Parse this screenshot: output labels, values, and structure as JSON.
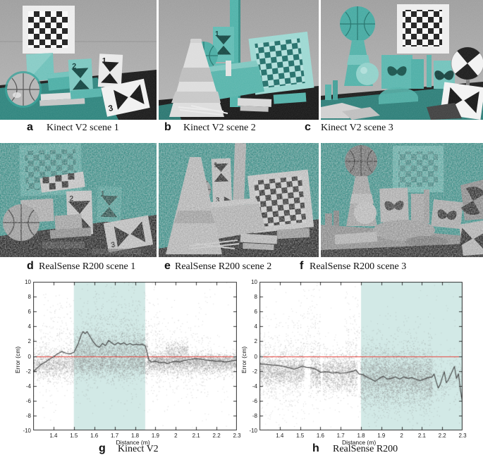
{
  "captions": {
    "a": {
      "letter": "a",
      "text": "Kinect V2 scene 1"
    },
    "b": {
      "letter": "b",
      "text": "Kinect V2 scene 2"
    },
    "c": {
      "letter": "c",
      "text": "Kinect V2 scene 3"
    },
    "d": {
      "letter": "d",
      "text": "RealSense R200 scene 1"
    },
    "e": {
      "letter": "e",
      "text": "RealSense R200 scene 2"
    },
    "f": {
      "letter": "f",
      "text": "RealSense R200 scene 3"
    },
    "g": {
      "letter": "g",
      "text": "Kinect V2"
    },
    "h": {
      "letter": "h",
      "text": "RealSense R200"
    }
  },
  "scene_markers": {
    "a": {
      "card1": "1",
      "card2": "2",
      "card3": "3"
    },
    "b": {
      "card1": "1",
      "card3": "3"
    },
    "c": {
      "card1": "1"
    },
    "d": {
      "card1": "1",
      "card2": "2",
      "card3": "3"
    },
    "e": {
      "card1": "1",
      "card3": "3"
    }
  },
  "colors": {
    "teal_overlay": "#45b0a7",
    "teal_wall": "#2d978e",
    "band_fill": "#d2e9e6",
    "scatter_gray": "#8d8d8d",
    "mean_line": "#4a4a4a",
    "zero_line": "#e8433c",
    "caption_text": "#111111"
  },
  "chart_data": [
    {
      "type": "scatter",
      "panel": "g",
      "title": "Kinect V2",
      "xlabel": "Distance (m)",
      "ylabel": "Error (cm)",
      "xlim": [
        1.3,
        2.3
      ],
      "ylim": [
        -10,
        10
      ],
      "xticks": [
        1.4,
        1.5,
        1.6,
        1.7,
        1.8,
        1.9,
        2.0,
        2.1,
        2.2,
        2.3
      ],
      "xtick_labels": [
        "1.4",
        "1.5",
        "1.6",
        "1.7",
        "1.8",
        "1.9",
        "2",
        "2.1",
        "2.2",
        "2.3"
      ],
      "yticks": [
        -10,
        -8,
        -6,
        -4,
        -2,
        0,
        2,
        4,
        6,
        8,
        10
      ],
      "ytick_labels": [
        "-10",
        "-8",
        "-6",
        "-4",
        "-2",
        "0",
        "2",
        "4",
        "6",
        "8",
        "10"
      ],
      "highlight_band": {
        "x0": 1.5,
        "x1": 1.85,
        "color": "#d2e9e6"
      },
      "zero_line": {
        "y": 0,
        "color": "#e8433c"
      },
      "mean_line": {
        "color": "#4a4a4a",
        "points": [
          [
            1.3,
            -2.1
          ],
          [
            1.32,
            -1.6
          ],
          [
            1.34,
            -1.1
          ],
          [
            1.36,
            -0.8
          ],
          [
            1.38,
            -0.4
          ],
          [
            1.4,
            -0.1
          ],
          [
            1.42,
            0.3
          ],
          [
            1.44,
            0.6
          ],
          [
            1.46,
            0.4
          ],
          [
            1.48,
            0.3
          ],
          [
            1.5,
            0.5
          ],
          [
            1.52,
            1.6
          ],
          [
            1.535,
            2.8
          ],
          [
            1.545,
            3.3
          ],
          [
            1.555,
            3.0
          ],
          [
            1.565,
            3.3
          ],
          [
            1.58,
            2.6
          ],
          [
            1.595,
            1.9
          ],
          [
            1.61,
            1.4
          ],
          [
            1.625,
            1.2
          ],
          [
            1.64,
            1.7
          ],
          [
            1.655,
            1.4
          ],
          [
            1.67,
            2.1
          ],
          [
            1.685,
            1.8
          ],
          [
            1.7,
            1.5
          ],
          [
            1.715,
            1.8
          ],
          [
            1.73,
            1.6
          ],
          [
            1.745,
            1.8
          ],
          [
            1.76,
            1.5
          ],
          [
            1.775,
            1.7
          ],
          [
            1.79,
            1.5
          ],
          [
            1.805,
            1.6
          ],
          [
            1.82,
            1.5
          ],
          [
            1.835,
            1.6
          ],
          [
            1.85,
            1.4
          ],
          [
            1.858,
            0.6
          ],
          [
            1.868,
            -0.5
          ],
          [
            1.88,
            -0.8
          ],
          [
            1.9,
            -0.7
          ],
          [
            1.92,
            -0.9
          ],
          [
            1.94,
            -0.8
          ],
          [
            1.96,
            -1.0
          ],
          [
            1.98,
            -0.8
          ],
          [
            2.0,
            -0.7
          ],
          [
            2.02,
            -0.8
          ],
          [
            2.04,
            -0.6
          ],
          [
            2.06,
            -0.5
          ],
          [
            2.08,
            -0.4
          ],
          [
            2.1,
            -0.35
          ],
          [
            2.12,
            -0.4
          ],
          [
            2.14,
            -0.5
          ],
          [
            2.16,
            -0.55
          ],
          [
            2.18,
            -0.6
          ],
          [
            2.2,
            -0.7
          ],
          [
            2.22,
            -0.65
          ],
          [
            2.24,
            -0.8
          ],
          [
            2.26,
            -0.75
          ],
          [
            2.28,
            -0.6
          ],
          [
            2.3,
            -0.55
          ]
        ]
      },
      "scatter": {
        "color": "#8d8d8d",
        "seed": 20,
        "bands": [
          {
            "x": [
              1.3,
              2.3
            ],
            "mean": -1.2,
            "sd": 0.75,
            "n": 2600,
            "alpha": 0.5
          },
          {
            "x": [
              1.3,
              1.5
            ],
            "mean": -1.0,
            "sd": 1.2,
            "n": 700,
            "alpha": 0.45
          },
          {
            "x": [
              1.5,
              1.86
            ],
            "mean": 0.4,
            "sd": 1.5,
            "n": 2300,
            "alpha": 0.5
          },
          {
            "x": [
              1.86,
              2.3
            ],
            "mean": -0.7,
            "sd": 0.6,
            "n": 1700,
            "alpha": 0.55
          },
          {
            "x": [
              1.33,
              1.92
            ],
            "mean": 1.5,
            "sd": 3.6,
            "n": 850,
            "alpha": 0.4
          },
          {
            "x": [
              1.52,
              1.82
            ],
            "mean": 3.5,
            "sd": 2.8,
            "n": 300,
            "alpha": 0.4
          },
          {
            "x": [
              1.9,
              2.17
            ],
            "mean": -0.5,
            "sd": 2.9,
            "n": 360,
            "alpha": 0.4
          },
          {
            "x": [
              1.95,
              2.06
            ],
            "mean": 0.9,
            "sd": 0.6,
            "n": 280,
            "alpha": 0.5
          },
          {
            "x": [
              1.3,
              2.3
            ],
            "mean": 0.0,
            "sd": 5.2,
            "n": 240,
            "alpha": 0.32
          }
        ]
      }
    },
    {
      "type": "scatter",
      "panel": "h",
      "title": "RealSense R200",
      "xlabel": "Distance (m)",
      "ylabel": "Error (cm)",
      "xlim": [
        1.3,
        2.3
      ],
      "ylim": [
        -10,
        10
      ],
      "xticks": [
        1.4,
        1.5,
        1.6,
        1.7,
        1.8,
        1.9,
        2.0,
        2.1,
        2.2,
        2.3
      ],
      "xtick_labels": [
        "1.4",
        "1.5",
        "1.6",
        "1.7",
        "1.8",
        "1.9",
        "2",
        "2.1",
        "2.2",
        "2.3"
      ],
      "yticks": [
        -10,
        -8,
        -6,
        -4,
        -2,
        0,
        2,
        4,
        6,
        8,
        10
      ],
      "ytick_labels": [
        "-10",
        "-8",
        "-6",
        "-4",
        "-2",
        "0",
        "2",
        "4",
        "6",
        "8",
        "10"
      ],
      "highlight_band": {
        "x0": 1.8,
        "x1": 2.3,
        "color": "#d2e9e6"
      },
      "zero_line": {
        "y": 0,
        "color": "#e8433c"
      },
      "mean_line": {
        "color": "#4a4a4a",
        "points": [
          [
            1.3,
            -1.05
          ],
          [
            1.33,
            -1.1
          ],
          [
            1.36,
            -1.2
          ],
          [
            1.39,
            -1.25
          ],
          [
            1.42,
            -1.4
          ],
          [
            1.45,
            -1.6
          ],
          [
            1.47,
            -1.75
          ],
          [
            1.49,
            -1.6
          ],
          [
            1.51,
            -1.35
          ],
          [
            1.53,
            -1.5
          ],
          [
            1.55,
            -1.55
          ],
          [
            1.57,
            -1.7
          ],
          [
            1.59,
            -1.95
          ],
          [
            1.6,
            -2.2
          ],
          [
            1.62,
            -2.1
          ],
          [
            1.64,
            -2.15
          ],
          [
            1.66,
            -2.25
          ],
          [
            1.68,
            -2.2
          ],
          [
            1.7,
            -2.3
          ],
          [
            1.72,
            -2.25
          ],
          [
            1.74,
            -2.15
          ],
          [
            1.76,
            -2.05
          ],
          [
            1.775,
            -1.85
          ],
          [
            1.79,
            -2.4
          ],
          [
            1.81,
            -2.5
          ],
          [
            1.83,
            -2.85
          ],
          [
            1.85,
            -3.1
          ],
          [
            1.87,
            -3.4
          ],
          [
            1.89,
            -3.0
          ],
          [
            1.91,
            -2.7
          ],
          [
            1.93,
            -3.1
          ],
          [
            1.95,
            -3.0
          ],
          [
            1.97,
            -2.8
          ],
          [
            1.99,
            -3.1
          ],
          [
            2.01,
            -2.8
          ],
          [
            2.03,
            -3.0
          ],
          [
            2.05,
            -2.9
          ],
          [
            2.07,
            -3.1
          ],
          [
            2.09,
            -3.3
          ],
          [
            2.11,
            -3.1
          ],
          [
            2.13,
            -2.9
          ],
          [
            2.15,
            -2.8
          ],
          [
            2.16,
            -2.4
          ],
          [
            2.17,
            -3.4
          ],
          [
            2.18,
            -4.3
          ],
          [
            2.19,
            -3.8
          ],
          [
            2.2,
            -2.9
          ],
          [
            2.21,
            -2.1
          ],
          [
            2.22,
            -3.6
          ],
          [
            2.23,
            -3.2
          ],
          [
            2.24,
            -2.6
          ],
          [
            2.25,
            -2.0
          ],
          [
            2.26,
            -1.4
          ],
          [
            2.27,
            -3.0
          ],
          [
            2.28,
            -2.4
          ],
          [
            2.29,
            -4.6
          ],
          [
            2.3,
            -6.3
          ]
        ]
      },
      "scatter": {
        "color": "#8d8d8d",
        "seed": 77,
        "bands": [
          {
            "x": [
              1.3,
              1.52
            ],
            "mean": -1.9,
            "sd": 1.15,
            "n": 1500,
            "alpha": 0.5
          },
          {
            "x": [
              1.55,
              1.6
            ],
            "mean": -2.0,
            "sd": 1.3,
            "n": 430,
            "alpha": 0.5
          },
          {
            "x": [
              1.61,
              1.78
            ],
            "mean": -2.3,
            "sd": 1.35,
            "n": 1350,
            "alpha": 0.5
          },
          {
            "x": [
              1.795,
              2.15
            ],
            "mean": -2.9,
            "sd": 1.8,
            "n": 3400,
            "alpha": 0.5
          },
          {
            "x": [
              1.795,
              2.15
            ],
            "mean": -2.5,
            "sd": 3.2,
            "n": 750,
            "alpha": 0.4
          },
          {
            "x": [
              2.15,
              2.3
            ],
            "mean": -3.2,
            "sd": 1.6,
            "n": 300,
            "alpha": 0.45
          },
          {
            "x": [
              1.5,
              1.6
            ],
            "mean": 1.5,
            "sd": 4.0,
            "n": 200,
            "alpha": 0.38
          },
          {
            "x": [
              1.72,
              1.79
            ],
            "mean": 1.0,
            "sd": 4.0,
            "n": 150,
            "alpha": 0.38
          },
          {
            "x": [
              1.3,
              1.52
            ],
            "mean": -2.0,
            "sd": 3.4,
            "n": 500,
            "alpha": 0.38
          },
          {
            "x": [
              1.3,
              2.3
            ],
            "mean": -1.0,
            "sd": 5.0,
            "n": 300,
            "alpha": 0.3
          }
        ]
      }
    }
  ]
}
